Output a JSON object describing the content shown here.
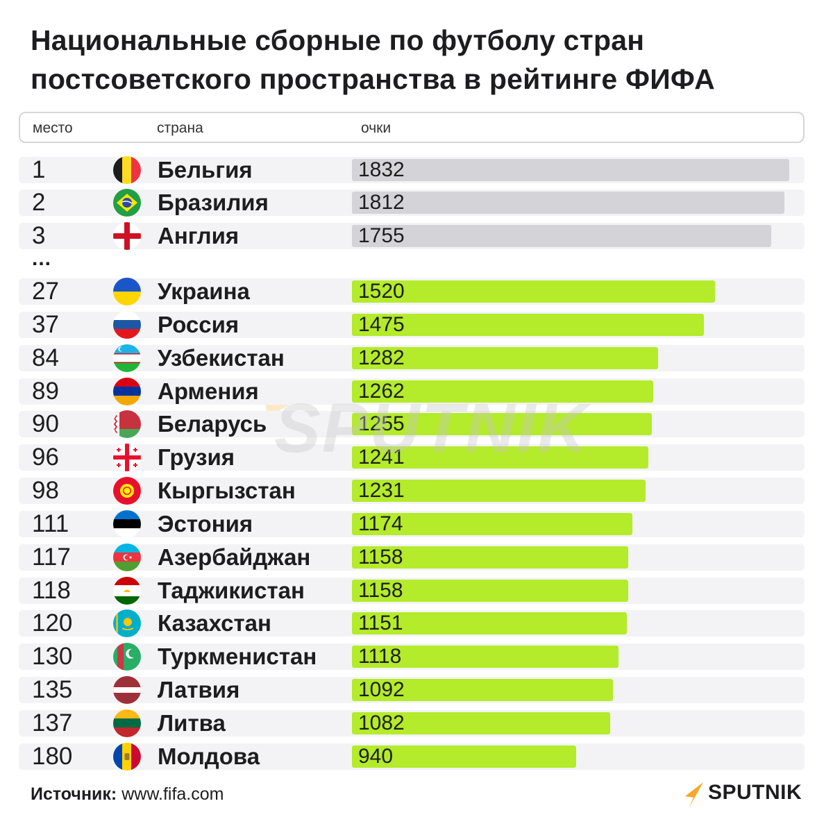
{
  "title": "Национальные сборные по футболу стран постсоветского пространства в рейтинге ФИФА",
  "columns": {
    "rank": "место",
    "country": "страна",
    "points": "очки"
  },
  "ellipsis": "...",
  "source_label": "Источник:",
  "source_value": "www.fifa.com",
  "brand": "SPUTNIK",
  "watermark": "SPUTNIK",
  "colors": {
    "top_bar": "#d4d4d8",
    "post_soviet_bar": "#b4eb2a",
    "row_bg": "#f3f3f5",
    "brand_orange": "#f6a828"
  },
  "chart_data": {
    "type": "bar",
    "orientation": "horizontal",
    "value_max": 1832,
    "rows": [
      {
        "rank": "1",
        "country": "Бельгия",
        "points": 1832,
        "group": "top",
        "flag_icon": "belgium-flag-icon"
      },
      {
        "rank": "2",
        "country": "Бразилия",
        "points": 1812,
        "group": "top",
        "flag_icon": "brazil-flag-icon"
      },
      {
        "rank": "3",
        "country": "Англия",
        "points": 1755,
        "group": "top",
        "flag_icon": "england-flag-icon"
      },
      {
        "rank": "27",
        "country": "Украина",
        "points": 1520,
        "group": "post_soviet",
        "flag_icon": "ukraine-flag-icon"
      },
      {
        "rank": "37",
        "country": "Россия",
        "points": 1475,
        "group": "post_soviet",
        "flag_icon": "russia-flag-icon"
      },
      {
        "rank": "84",
        "country": "Узбекистан",
        "points": 1282,
        "group": "post_soviet",
        "flag_icon": "uzbekistan-flag-icon"
      },
      {
        "rank": "89",
        "country": "Армения",
        "points": 1262,
        "group": "post_soviet",
        "flag_icon": "armenia-flag-icon"
      },
      {
        "rank": "90",
        "country": "Беларусь",
        "points": 1255,
        "group": "post_soviet",
        "flag_icon": "belarus-flag-icon"
      },
      {
        "rank": "96",
        "country": "Грузия",
        "points": 1241,
        "group": "post_soviet",
        "flag_icon": "georgia-flag-icon"
      },
      {
        "rank": "98",
        "country": "Кыргызстан",
        "points": 1231,
        "group": "post_soviet",
        "flag_icon": "kyrgyzstan-flag-icon"
      },
      {
        "rank": "111",
        "country": "Эстония",
        "points": 1174,
        "group": "post_soviet",
        "flag_icon": "estonia-flag-icon"
      },
      {
        "rank": "117",
        "country": "Азербайджан",
        "points": 1158,
        "group": "post_soviet",
        "flag_icon": "azerbaijan-flag-icon"
      },
      {
        "rank": "118",
        "country": "Таджикистан",
        "points": 1158,
        "group": "post_soviet",
        "flag_icon": "tajikistan-flag-icon"
      },
      {
        "rank": "120",
        "country": "Казахстан",
        "points": 1151,
        "group": "post_soviet",
        "flag_icon": "kazakhstan-flag-icon"
      },
      {
        "rank": "130",
        "country": "Туркменистан",
        "points": 1118,
        "group": "post_soviet",
        "flag_icon": "turkmenistan-flag-icon"
      },
      {
        "rank": "135",
        "country": "Латвия",
        "points": 1092,
        "group": "post_soviet",
        "flag_icon": "latvia-flag-icon"
      },
      {
        "rank": "137",
        "country": "Литва",
        "points": 1082,
        "group": "post_soviet",
        "flag_icon": "lithuania-flag-icon"
      },
      {
        "rank": "180",
        "country": "Молдова",
        "points": 940,
        "group": "post_soviet",
        "flag_icon": "moldova-flag-icon"
      }
    ]
  }
}
